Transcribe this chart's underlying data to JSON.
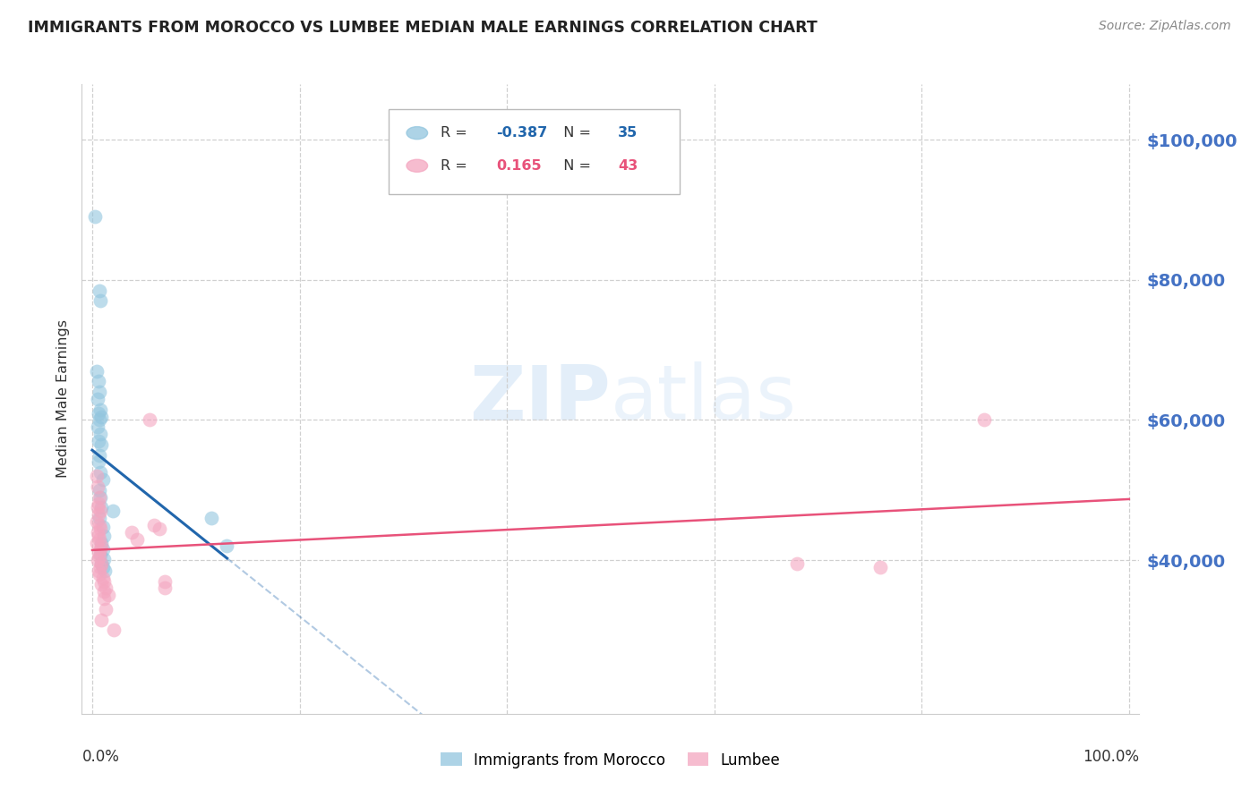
{
  "title": "IMMIGRANTS FROM MOROCCO VS LUMBEE MEDIAN MALE EARNINGS CORRELATION CHART",
  "source": "Source: ZipAtlas.com",
  "ylabel": "Median Male Earnings",
  "yticks": [
    40000,
    60000,
    80000,
    100000
  ],
  "ytick_labels": [
    "$40,000",
    "$60,000",
    "$80,000",
    "$100,000"
  ],
  "ylim": [
    18000,
    108000
  ],
  "xlim": [
    -0.01,
    1.01
  ],
  "morocco_color": "#92c5de",
  "lumbee_color": "#f4a6c0",
  "morocco_line_color": "#2166ac",
  "lumbee_line_color": "#e8527a",
  "morocco_r": "-0.387",
  "morocco_n": "35",
  "lumbee_r": "0.165",
  "lumbee_n": "43",
  "morocco_points": [
    [
      0.003,
      89000
    ],
    [
      0.007,
      78500
    ],
    [
      0.008,
      77000
    ],
    [
      0.004,
      67000
    ],
    [
      0.006,
      65500
    ],
    [
      0.007,
      64000
    ],
    [
      0.005,
      63000
    ],
    [
      0.008,
      61500
    ],
    [
      0.006,
      61000
    ],
    [
      0.009,
      60500
    ],
    [
      0.007,
      60000
    ],
    [
      0.005,
      59000
    ],
    [
      0.008,
      58000
    ],
    [
      0.006,
      57000
    ],
    [
      0.009,
      56500
    ],
    [
      0.007,
      55000
    ],
    [
      0.006,
      54000
    ],
    [
      0.008,
      52500
    ],
    [
      0.01,
      51500
    ],
    [
      0.007,
      50000
    ],
    [
      0.008,
      49000
    ],
    [
      0.009,
      47500
    ],
    [
      0.007,
      46000
    ],
    [
      0.01,
      44800
    ],
    [
      0.011,
      43500
    ],
    [
      0.009,
      42500
    ],
    [
      0.01,
      41500
    ],
    [
      0.008,
      40800
    ],
    [
      0.011,
      40200
    ],
    [
      0.009,
      39500
    ],
    [
      0.01,
      39000
    ],
    [
      0.012,
      38500
    ],
    [
      0.02,
      47000
    ],
    [
      0.115,
      46000
    ],
    [
      0.13,
      42000
    ]
  ],
  "lumbee_points": [
    [
      0.004,
      52000
    ],
    [
      0.005,
      50500
    ],
    [
      0.007,
      49000
    ],
    [
      0.006,
      48000
    ],
    [
      0.005,
      47500
    ],
    [
      0.008,
      47000
    ],
    [
      0.006,
      46500
    ],
    [
      0.004,
      45500
    ],
    [
      0.007,
      45000
    ],
    [
      0.008,
      44500
    ],
    [
      0.005,
      44000
    ],
    [
      0.006,
      43500
    ],
    [
      0.007,
      43000
    ],
    [
      0.004,
      42500
    ],
    [
      0.009,
      42000
    ],
    [
      0.008,
      41500
    ],
    [
      0.006,
      41000
    ],
    [
      0.007,
      40500
    ],
    [
      0.005,
      40000
    ],
    [
      0.009,
      39500
    ],
    [
      0.008,
      39000
    ],
    [
      0.006,
      38500
    ],
    [
      0.007,
      38000
    ],
    [
      0.01,
      37500
    ],
    [
      0.011,
      37000
    ],
    [
      0.009,
      36500
    ],
    [
      0.013,
      36000
    ],
    [
      0.011,
      35500
    ],
    [
      0.016,
      35000
    ],
    [
      0.011,
      34500
    ],
    [
      0.013,
      33000
    ],
    [
      0.009,
      31500
    ],
    [
      0.021,
      30000
    ],
    [
      0.038,
      44000
    ],
    [
      0.043,
      43000
    ],
    [
      0.055,
      60000
    ],
    [
      0.06,
      45000
    ],
    [
      0.065,
      44500
    ],
    [
      0.07,
      37000
    ],
    [
      0.07,
      36000
    ],
    [
      0.68,
      39500
    ],
    [
      0.76,
      39000
    ],
    [
      0.86,
      60000
    ]
  ],
  "background_color": "#ffffff",
  "grid_color": "#d0d0d0"
}
